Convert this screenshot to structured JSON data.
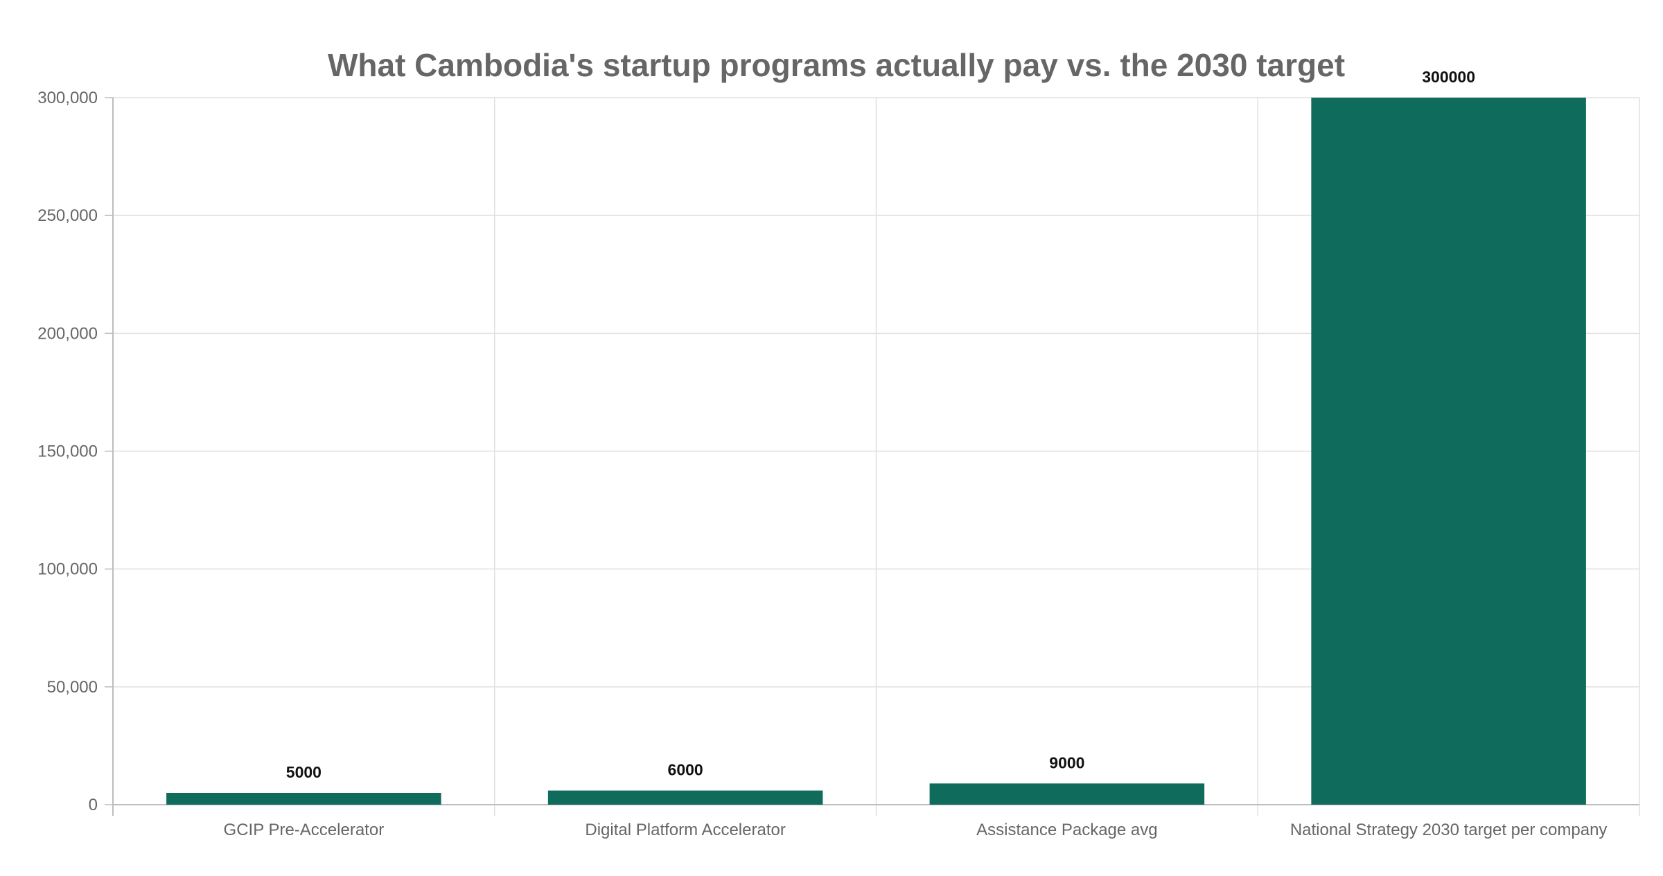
{
  "chart_data": {
    "type": "bar",
    "title": "What Cambodia's startup programs actually pay vs. the 2030 target",
    "xlabel": "",
    "ylabel": "",
    "categories": [
      "GCIP Pre-Accelerator",
      "Digital Platform Accelerator",
      "Assistance Package avg",
      "National Strategy 2030 target per company"
    ],
    "values": [
      5000,
      6000,
      9000,
      300000
    ],
    "value_labels": [
      "5000",
      "6000",
      "9000",
      "300000"
    ],
    "ylim": [
      0,
      300000
    ],
    "yticks": [
      0,
      50000,
      100000,
      150000,
      200000,
      250000,
      300000
    ],
    "ytick_labels": [
      "0",
      "50,000",
      "100,000",
      "150,000",
      "200,000",
      "250,000",
      "300,000"
    ],
    "grid": true,
    "legend": "none"
  },
  "colors": {
    "bar": "#0f6b5c",
    "grid": "#e0e0e0",
    "axis": "#bdbdbd",
    "title": "#666666",
    "tick": "#666666",
    "value_label": "#111111"
  }
}
